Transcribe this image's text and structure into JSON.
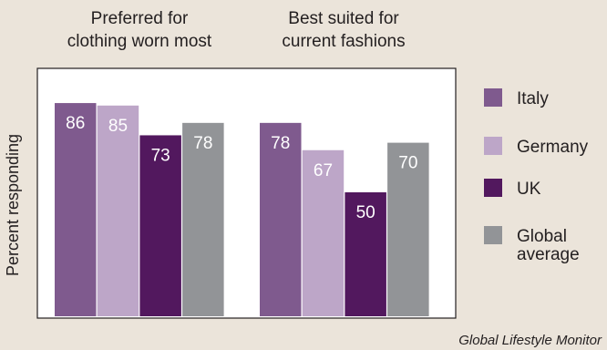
{
  "chart_data": {
    "type": "bar",
    "categories": [
      [
        "Preferred for",
        "clothing worn most"
      ],
      [
        "Best suited for",
        "current fashions"
      ]
    ],
    "series": [
      {
        "name": "Italy",
        "values": [
          86,
          78
        ],
        "color": "#7f5a8e"
      },
      {
        "name": "Germany",
        "values": [
          85,
          67
        ],
        "color": "#bda6c8"
      },
      {
        "name": "UK",
        "values": [
          73,
          50
        ],
        "color": "#52185e"
      },
      {
        "name": "Global average",
        "legend_lines": [
          "Global",
          "average"
        ],
        "values": [
          78,
          70
        ],
        "color": "#929497"
      }
    ],
    "ylabel": "Percent responding",
    "ylim": [
      0,
      100
    ],
    "grid": false,
    "legend_position": "right",
    "source": "Global Lifestyle Monitor"
  }
}
